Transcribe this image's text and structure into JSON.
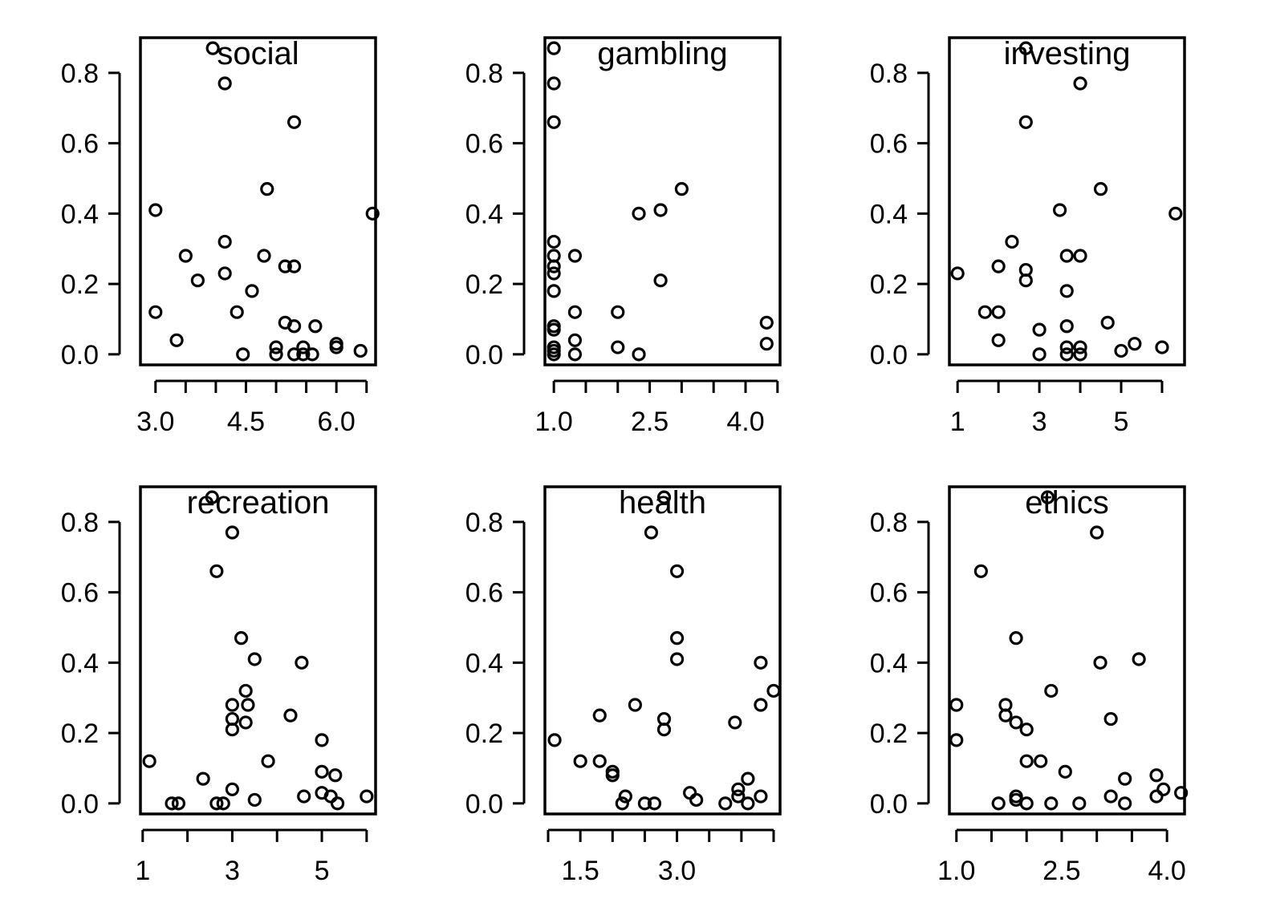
{
  "chart_data": [
    {
      "type": "scatter",
      "title": "social",
      "xlabel": "",
      "ylabel": "",
      "xlim": [
        2.75,
        6.65
      ],
      "ylim": [
        -0.03,
        0.9
      ],
      "xticks": [
        3.0,
        3.5,
        4.0,
        4.5,
        5.0,
        5.5,
        6.0,
        6.5
      ],
      "xtick_labels": [
        "3.0",
        "",
        "",
        "4.5",
        "",
        "",
        "6.0",
        ""
      ],
      "yticks": [
        0.0,
        0.2,
        0.4,
        0.6,
        0.8
      ],
      "ytick_labels": [
        "0.0",
        "0.2",
        "0.4",
        "0.6",
        "0.8"
      ],
      "points": [
        [
          3.0,
          0.41
        ],
        [
          3.0,
          0.12
        ],
        [
          3.35,
          0.04
        ],
        [
          3.5,
          0.28
        ],
        [
          3.7,
          0.21
        ],
        [
          3.95,
          0.87
        ],
        [
          4.15,
          0.77
        ],
        [
          4.15,
          0.32
        ],
        [
          4.15,
          0.23
        ],
        [
          4.35,
          0.12
        ],
        [
          4.45,
          0.0
        ],
        [
          4.6,
          0.18
        ],
        [
          4.8,
          0.28
        ],
        [
          4.85,
          0.47
        ],
        [
          5.0,
          0.02
        ],
        [
          5.0,
          0.0
        ],
        [
          5.15,
          0.09
        ],
        [
          5.15,
          0.25
        ],
        [
          5.3,
          0.0
        ],
        [
          5.3,
          0.66
        ],
        [
          5.3,
          0.08
        ],
        [
          5.3,
          0.25
        ],
        [
          5.45,
          0.0
        ],
        [
          5.45,
          0.02
        ],
        [
          5.6,
          0.0
        ],
        [
          5.65,
          0.08
        ],
        [
          6.0,
          0.03
        ],
        [
          6.0,
          0.02
        ],
        [
          6.4,
          0.01
        ],
        [
          6.6,
          0.4
        ]
      ]
    },
    {
      "type": "scatter",
      "title": "gambling",
      "xlabel": "",
      "ylabel": "",
      "xlim": [
        0.86,
        4.54
      ],
      "ylim": [
        -0.03,
        0.9
      ],
      "xticks": [
        1.0,
        1.5,
        2.0,
        2.5,
        3.0,
        3.5,
        4.0,
        4.5
      ],
      "xtick_labels": [
        "1.0",
        "",
        "",
        "2.5",
        "",
        "",
        "4.0",
        ""
      ],
      "yticks": [
        0.0,
        0.2,
        0.4,
        0.6,
        0.8
      ],
      "ytick_labels": [
        "0.0",
        "0.2",
        "0.4",
        "0.6",
        "0.8"
      ],
      "points": [
        [
          1.0,
          0.87
        ],
        [
          1.0,
          0.77
        ],
        [
          1.0,
          0.66
        ],
        [
          1.0,
          0.32
        ],
        [
          1.0,
          0.28
        ],
        [
          1.0,
          0.25
        ],
        [
          1.0,
          0.23
        ],
        [
          1.0,
          0.18
        ],
        [
          1.0,
          0.08
        ],
        [
          1.0,
          0.07
        ],
        [
          1.0,
          0.02
        ],
        [
          1.0,
          0.01
        ],
        [
          1.0,
          0.0
        ],
        [
          1.33,
          0.28
        ],
        [
          1.33,
          0.12
        ],
        [
          1.33,
          0.04
        ],
        [
          1.33,
          0.0
        ],
        [
          2.0,
          0.12
        ],
        [
          2.0,
          0.02
        ],
        [
          2.33,
          0.4
        ],
        [
          2.33,
          0.0
        ],
        [
          2.67,
          0.41
        ],
        [
          2.67,
          0.21
        ],
        [
          3.0,
          0.47
        ],
        [
          4.33,
          0.09
        ],
        [
          4.33,
          0.03
        ]
      ]
    },
    {
      "type": "scatter",
      "title": "investing",
      "xlabel": "",
      "ylabel": "",
      "xlim": [
        0.8,
        6.55
      ],
      "ylim": [
        -0.03,
        0.9
      ],
      "xticks": [
        1,
        2,
        3,
        4,
        5,
        6
      ],
      "xtick_labels": [
        "1",
        "",
        "3",
        "",
        "5",
        ""
      ],
      "yticks": [
        0.0,
        0.2,
        0.4,
        0.6,
        0.8
      ],
      "ytick_labels": [
        "0.0",
        "0.2",
        "0.4",
        "0.6",
        "0.8"
      ],
      "points": [
        [
          1.0,
          0.23
        ],
        [
          1.67,
          0.12
        ],
        [
          2.0,
          0.25
        ],
        [
          2.0,
          0.12
        ],
        [
          2.0,
          0.04
        ],
        [
          2.33,
          0.32
        ],
        [
          2.67,
          0.87
        ],
        [
          2.67,
          0.66
        ],
        [
          2.67,
          0.24
        ],
        [
          2.67,
          0.21
        ],
        [
          3.0,
          0.07
        ],
        [
          3.0,
          0.0
        ],
        [
          3.5,
          0.41
        ],
        [
          3.67,
          0.28
        ],
        [
          3.67,
          0.18
        ],
        [
          3.67,
          0.08
        ],
        [
          3.67,
          0.02
        ],
        [
          3.67,
          0.0
        ],
        [
          4.0,
          0.77
        ],
        [
          4.0,
          0.28
        ],
        [
          4.0,
          0.02
        ],
        [
          4.0,
          0.0
        ],
        [
          4.5,
          0.47
        ],
        [
          4.67,
          0.09
        ],
        [
          5.0,
          0.01
        ],
        [
          5.33,
          0.03
        ],
        [
          6.0,
          0.02
        ],
        [
          6.33,
          0.4
        ]
      ]
    },
    {
      "type": "scatter",
      "title": "recreation",
      "xlabel": "",
      "ylabel": "",
      "xlim": [
        0.95,
        6.2
      ],
      "ylim": [
        -0.03,
        0.9
      ],
      "xticks": [
        1,
        2,
        3,
        4,
        5,
        6
      ],
      "xtick_labels": [
        "1",
        "",
        "3",
        "",
        "5",
        ""
      ],
      "yticks": [
        0.0,
        0.2,
        0.4,
        0.6,
        0.8
      ],
      "ytick_labels": [
        "0.0",
        "0.2",
        "0.4",
        "0.6",
        "0.8"
      ],
      "points": [
        [
          1.15,
          0.12
        ],
        [
          1.65,
          0.0
        ],
        [
          1.8,
          0.0
        ],
        [
          2.35,
          0.07
        ],
        [
          2.55,
          0.87
        ],
        [
          2.65,
          0.66
        ],
        [
          2.65,
          0.0
        ],
        [
          2.8,
          0.0
        ],
        [
          3.0,
          0.77
        ],
        [
          3.0,
          0.28
        ],
        [
          3.0,
          0.24
        ],
        [
          3.0,
          0.21
        ],
        [
          3.0,
          0.04
        ],
        [
          3.2,
          0.47
        ],
        [
          3.3,
          0.32
        ],
        [
          3.35,
          0.28
        ],
        [
          3.3,
          0.23
        ],
        [
          3.5,
          0.41
        ],
        [
          3.5,
          0.01
        ],
        [
          3.8,
          0.12
        ],
        [
          4.3,
          0.25
        ],
        [
          4.55,
          0.4
        ],
        [
          4.6,
          0.02
        ],
        [
          5.0,
          0.18
        ],
        [
          5.0,
          0.09
        ],
        [
          5.0,
          0.03
        ],
        [
          5.2,
          0.02
        ],
        [
          5.3,
          0.08
        ],
        [
          5.35,
          0.0
        ],
        [
          6.0,
          0.02
        ]
      ]
    },
    {
      "type": "scatter",
      "title": "health",
      "xlabel": "",
      "ylabel": "",
      "xlim": [
        0.95,
        4.6
      ],
      "ylim": [
        -0.03,
        0.9
      ],
      "xticks": [
        1.0,
        1.5,
        2.0,
        2.5,
        3.0,
        3.5,
        4.0,
        4.5
      ],
      "xtick_labels": [
        "",
        "1.5",
        "",
        "",
        "3.0",
        "",
        "",
        ""
      ],
      "yticks": [
        0.0,
        0.2,
        0.4,
        0.6,
        0.8
      ],
      "ytick_labels": [
        "0.0",
        "0.2",
        "0.4",
        "0.6",
        "0.8"
      ],
      "points": [
        [
          1.1,
          0.18
        ],
        [
          1.5,
          0.12
        ],
        [
          1.8,
          0.25
        ],
        [
          1.8,
          0.12
        ],
        [
          2.0,
          0.09
        ],
        [
          2.0,
          0.08
        ],
        [
          2.15,
          0.0
        ],
        [
          2.2,
          0.02
        ],
        [
          2.35,
          0.28
        ],
        [
          2.5,
          0.0
        ],
        [
          2.65,
          0.0
        ],
        [
          2.6,
          0.77
        ],
        [
          2.8,
          0.87
        ],
        [
          2.8,
          0.24
        ],
        [
          2.8,
          0.21
        ],
        [
          3.0,
          0.66
        ],
        [
          3.0,
          0.47
        ],
        [
          3.0,
          0.41
        ],
        [
          3.2,
          0.03
        ],
        [
          3.3,
          0.01
        ],
        [
          3.75,
          0.0
        ],
        [
          3.9,
          0.23
        ],
        [
          3.95,
          0.04
        ],
        [
          3.95,
          0.02
        ],
        [
          4.1,
          0.07
        ],
        [
          4.1,
          0.0
        ],
        [
          4.3,
          0.4
        ],
        [
          4.3,
          0.28
        ],
        [
          4.3,
          0.02
        ],
        [
          4.5,
          0.32
        ]
      ]
    },
    {
      "type": "scatter",
      "title": "ethics",
      "xlabel": "",
      "ylabel": "",
      "xlim": [
        0.9,
        4.25
      ],
      "ylim": [
        -0.03,
        0.9
      ],
      "xticks": [
        1.0,
        1.5,
        2.0,
        2.5,
        3.0,
        3.5,
        4.0
      ],
      "xtick_labels": [
        "1.0",
        "",
        "",
        "2.5",
        "",
        "",
        "4.0"
      ],
      "yticks": [
        0.0,
        0.2,
        0.4,
        0.6,
        0.8
      ],
      "ytick_labels": [
        "0.0",
        "0.2",
        "0.4",
        "0.6",
        "0.8"
      ],
      "points": [
        [
          1.0,
          0.28
        ],
        [
          1.0,
          0.18
        ],
        [
          1.35,
          0.66
        ],
        [
          1.6,
          0.0
        ],
        [
          1.7,
          0.28
        ],
        [
          1.7,
          0.25
        ],
        [
          1.85,
          0.23
        ],
        [
          1.85,
          0.47
        ],
        [
          1.85,
          0.02
        ],
        [
          1.85,
          0.01
        ],
        [
          2.0,
          0.21
        ],
        [
          2.0,
          0.12
        ],
        [
          2.0,
          0.0
        ],
        [
          2.2,
          0.12
        ],
        [
          2.3,
          0.87
        ],
        [
          2.35,
          0.32
        ],
        [
          2.35,
          0.0
        ],
        [
          2.55,
          0.09
        ],
        [
          2.75,
          0.0
        ],
        [
          3.0,
          0.77
        ],
        [
          3.05,
          0.4
        ],
        [
          3.2,
          0.24
        ],
        [
          3.2,
          0.02
        ],
        [
          3.4,
          0.07
        ],
        [
          3.4,
          0.0
        ],
        [
          3.6,
          0.41
        ],
        [
          3.85,
          0.08
        ],
        [
          3.85,
          0.02
        ],
        [
          3.95,
          0.04
        ],
        [
          4.2,
          0.03
        ]
      ]
    }
  ]
}
